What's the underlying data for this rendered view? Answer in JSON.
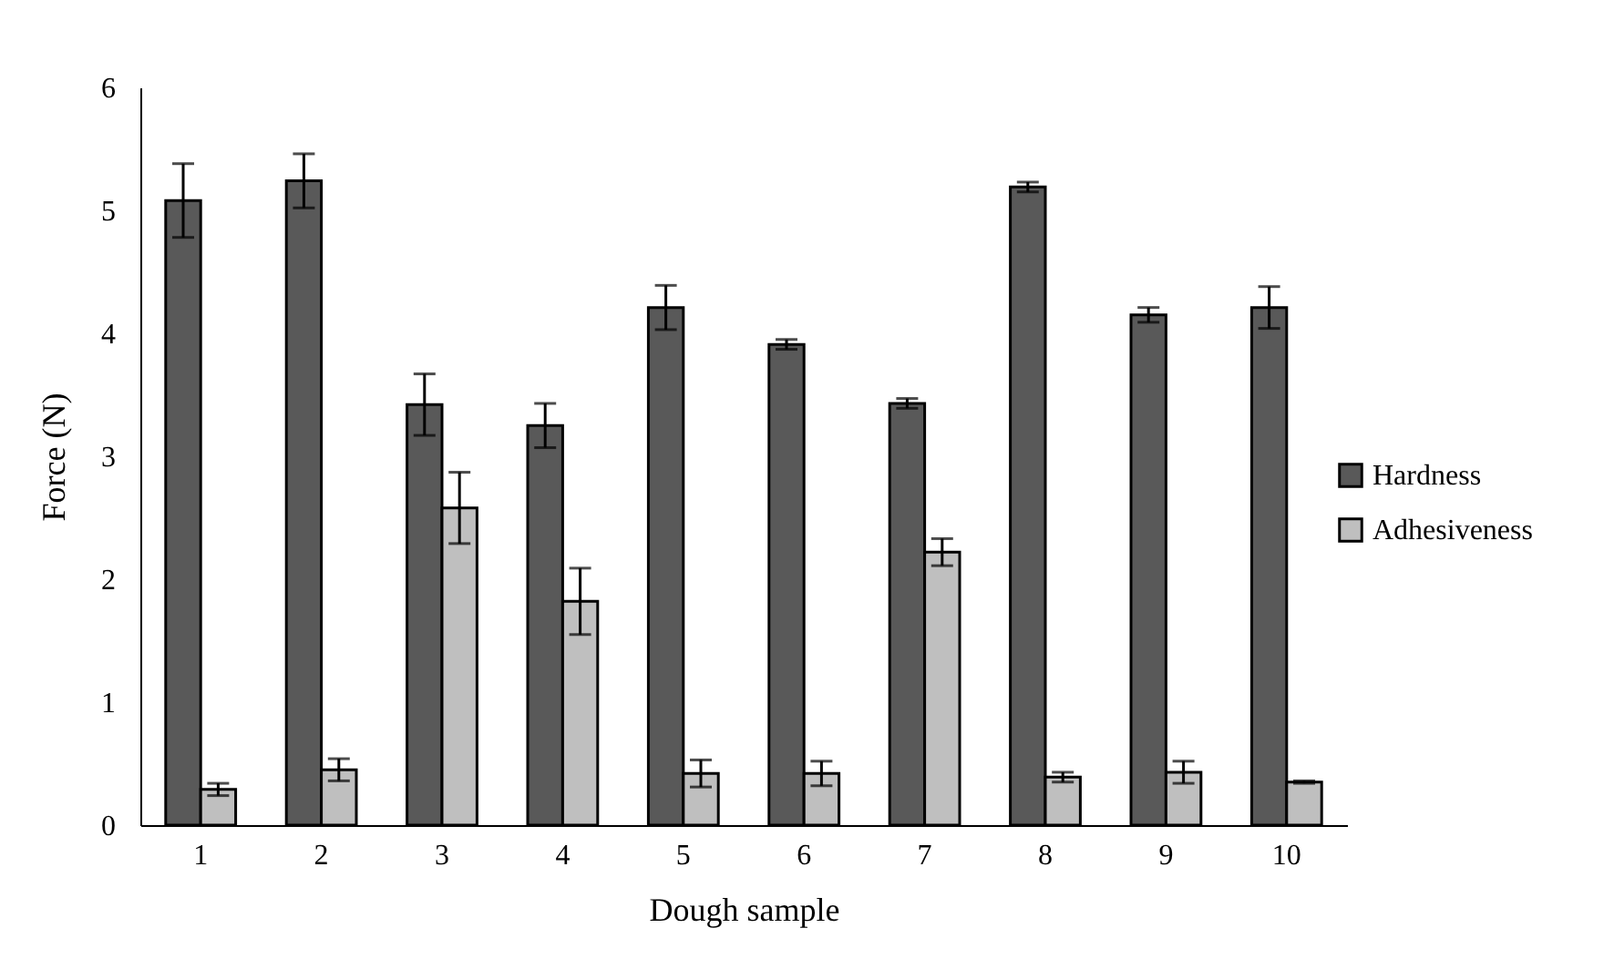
{
  "chart_data": {
    "type": "bar",
    "xlabel": "Dough sample",
    "ylabel": "Force (N)",
    "categories": [
      "1",
      "2",
      "3",
      "4",
      "5",
      "6",
      "7",
      "8",
      "9",
      "10"
    ],
    "series": [
      {
        "name": "Hardness",
        "color": "#595959",
        "values": [
          5.08,
          5.24,
          3.42,
          3.25,
          4.21,
          3.91,
          3.43,
          5.19,
          4.15,
          4.21
        ],
        "errors": [
          0.3,
          0.22,
          0.25,
          0.18,
          0.18,
          0.04,
          0.04,
          0.04,
          0.06,
          0.17
        ]
      },
      {
        "name": "Adhesiveness",
        "color": "#bfbfbf",
        "values": [
          0.29,
          0.45,
          2.58,
          1.82,
          0.42,
          0.42,
          2.22,
          0.39,
          0.43,
          0.35
        ],
        "errors": [
          0.05,
          0.09,
          0.29,
          0.27,
          0.11,
          0.1,
          0.11,
          0.04,
          0.09,
          0.01
        ]
      }
    ],
    "ylim": [
      0,
      6
    ],
    "yticks": [
      0,
      1,
      2,
      3,
      4,
      5,
      6
    ],
    "grid": false,
    "legend": "right"
  }
}
